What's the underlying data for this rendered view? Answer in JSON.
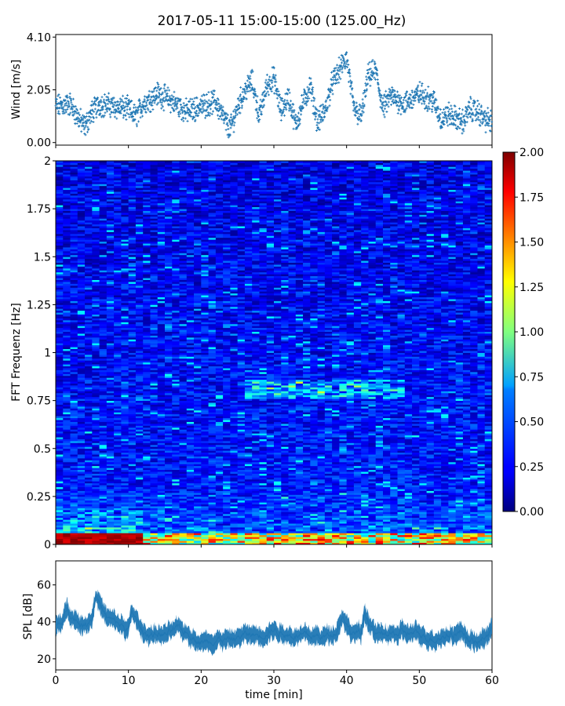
{
  "figure": {
    "title": "2017-05-11 15:00-15:00 (125.00_Hz)"
  },
  "chart_data": [
    {
      "type": "scatter",
      "panel": "top",
      "xlabel": "",
      "ylabel": "Wind [m/s]",
      "xlim": [
        0,
        60
      ],
      "ylim": [
        -0.1,
        4.2
      ],
      "yticks": [
        0.0,
        2.05,
        4.1
      ],
      "ytick_labels": [
        "0.00",
        "2.05",
        "4.10"
      ],
      "marker": "plus",
      "color": "#1f77b4",
      "series_trend": {
        "x": [
          0,
          2,
          3,
          4,
          5,
          6,
          8,
          10,
          11,
          12,
          14,
          16,
          18,
          20,
          22,
          23,
          24,
          25,
          26,
          27,
          28,
          29,
          30,
          31,
          32,
          33,
          34,
          35,
          36,
          37,
          38,
          39,
          40,
          41,
          42,
          43,
          44,
          45,
          46,
          48,
          50,
          52,
          53,
          54,
          56,
          57,
          58,
          59,
          60
        ],
        "y": [
          1.4,
          1.5,
          1.0,
          0.6,
          1.2,
          1.5,
          1.4,
          1.3,
          1.0,
          1.5,
          1.9,
          1.6,
          1.2,
          1.4,
          1.6,
          1.0,
          0.5,
          1.4,
          2.0,
          2.4,
          1.0,
          2.2,
          2.5,
          1.2,
          1.8,
          0.7,
          1.5,
          2.2,
          0.8,
          1.2,
          2.3,
          2.8,
          3.3,
          1.3,
          1.0,
          2.6,
          2.8,
          1.3,
          1.8,
          1.5,
          1.9,
          1.6,
          0.9,
          1.1,
          0.8,
          1.3,
          1.2,
          0.9,
          0.8
        ]
      }
    },
    {
      "type": "heatmap",
      "panel": "middle",
      "ylabel": "FFT Frequenz [Hz]",
      "xlim": [
        0,
        60
      ],
      "ylim": [
        0,
        2
      ],
      "yticks": [
        0,
        0.25,
        0.5,
        0.75,
        1,
        1.25,
        1.5,
        1.75,
        2
      ],
      "ytick_labels": [
        "0",
        "0.25",
        "0.5",
        "0.75",
        "1",
        "1.25",
        "1.5",
        "1.75",
        "2"
      ],
      "colormap": "jet",
      "colorbar": {
        "vmin": 0.0,
        "vmax": 2.0,
        "ticks": [
          0.0,
          0.25,
          0.5,
          0.75,
          1.0,
          1.25,
          1.5,
          1.75,
          2.0
        ],
        "tick_labels": [
          "0.00",
          "0.25",
          "0.50",
          "0.75",
          "1.00",
          "1.25",
          "1.50",
          "1.75",
          "2.00"
        ]
      },
      "features": {
        "low_freq_band_hz": [
          0,
          0.06
        ],
        "low_freq_value_early": 2.0,
        "low_freq_value_late": 1.2,
        "early_highlight_minutes": [
          0,
          11.5
        ],
        "band_near_0_8hz_minutes": [
          26,
          48
        ],
        "band_near_0_8hz_value": 1.0,
        "background_value": 0.3
      }
    },
    {
      "type": "area",
      "panel": "bottom",
      "xlabel": "time [min]",
      "ylabel": "SPL [dB]",
      "xlim": [
        0,
        60
      ],
      "ylim": [
        14,
        73
      ],
      "xticks": [
        0,
        10,
        20,
        30,
        40,
        50,
        60
      ],
      "xtick_labels": [
        "0",
        "10",
        "20",
        "30",
        "40",
        "50",
        "60"
      ],
      "yticks": [
        20,
        40,
        60
      ],
      "ytick_labels": [
        "20",
        "40",
        "60"
      ],
      "color": "#1f77b4",
      "series_trend": {
        "x": [
          0,
          1,
          1.6,
          2.5,
          4,
          5,
          5.5,
          7,
          9,
          10,
          10.5,
          12,
          15,
          17,
          19,
          20,
          22,
          24,
          26,
          28,
          30,
          32,
          35,
          37,
          38.5,
          39.5,
          40.5,
          42,
          42.5,
          44,
          46,
          48,
          50,
          52,
          54,
          56,
          57,
          58,
          59.5,
          60
        ],
        "y": [
          38,
          40,
          48,
          42,
          38,
          43,
          55,
          42,
          38,
          36,
          45,
          34,
          33,
          36,
          32,
          29,
          31,
          30,
          33,
          33,
          36,
          33,
          32,
          32,
          35,
          44,
          35,
          33,
          45,
          33,
          33,
          34,
          33,
          31,
          33,
          35,
          30,
          28,
          34,
          36
        ]
      },
      "band_half_width_db": 5
    }
  ]
}
